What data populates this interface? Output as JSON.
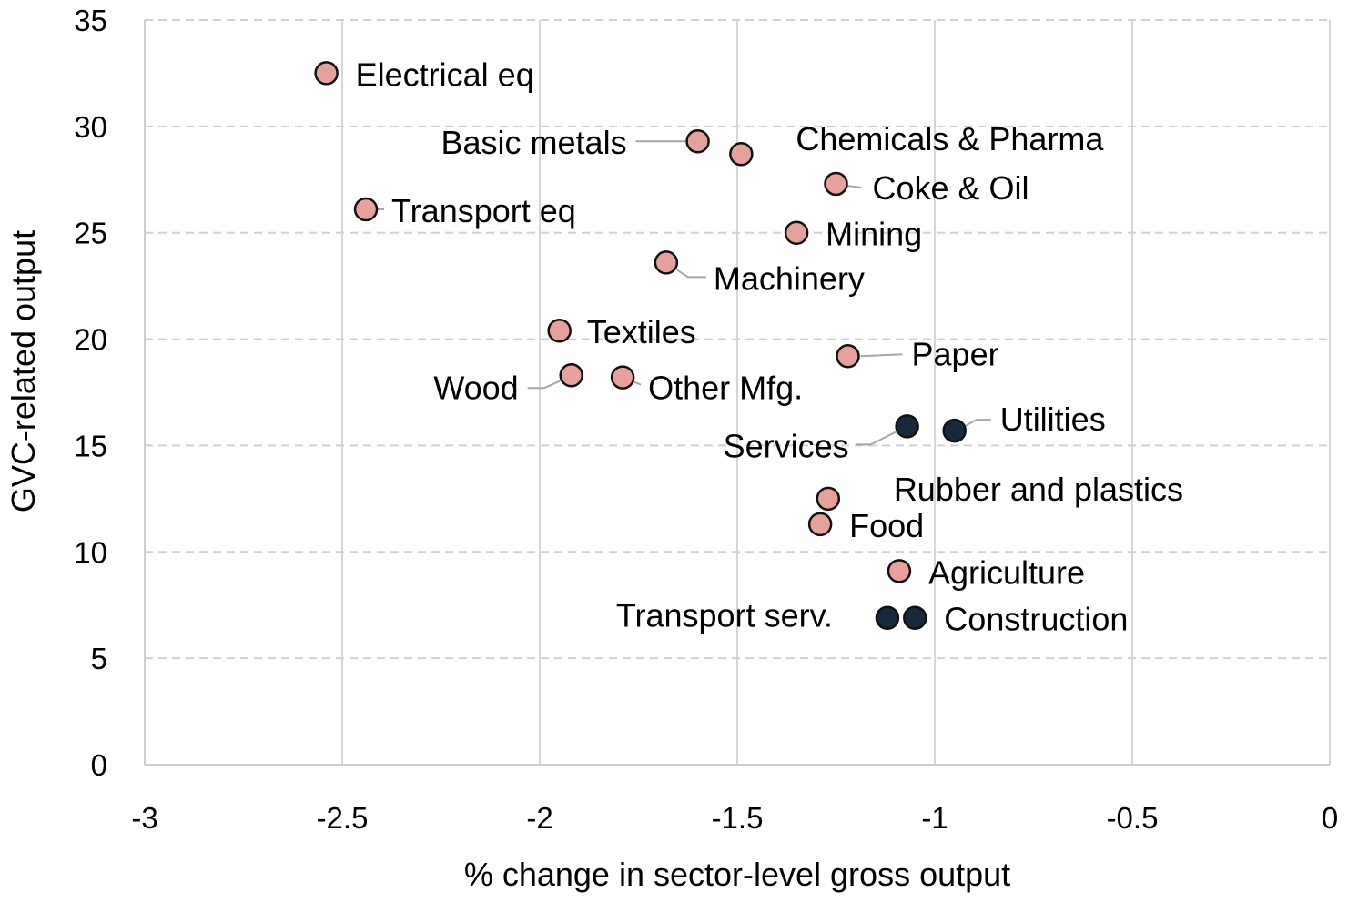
{
  "chart_data": {
    "type": "scatter",
    "xlabel": "% change in sector-level gross output",
    "ylabel": "GVC-related output",
    "xlim": [
      -3,
      0
    ],
    "ylim": [
      0,
      35
    ],
    "x_ticks": [
      "-3",
      "-2.5",
      "-2",
      "-1.5",
      "-1",
      "-0.5",
      "0"
    ],
    "y_ticks": [
      "0",
      "5",
      "10",
      "15",
      "20",
      "25",
      "30",
      "35"
    ],
    "grid": "horizontal dashed, vertical solid",
    "colors": {
      "manufacturing": "#e6a19c",
      "other": "#162a3c"
    },
    "points": [
      {
        "label": "Electrical eq",
        "x": -2.54,
        "y": 32.5,
        "group": "manufacturing"
      },
      {
        "label": "Basic metals",
        "x": -1.6,
        "y": 29.3,
        "group": "manufacturing"
      },
      {
        "label": "Chemicals & Pharma",
        "x": -1.49,
        "y": 28.7,
        "group": "manufacturing"
      },
      {
        "label": "Coke & Oil",
        "x": -1.25,
        "y": 27.3,
        "group": "manufacturing"
      },
      {
        "label": "Transport eq",
        "x": -2.44,
        "y": 26.1,
        "group": "manufacturing"
      },
      {
        "label": "Mining",
        "x": -1.35,
        "y": 25.0,
        "group": "manufacturing"
      },
      {
        "label": "Machinery",
        "x": -1.68,
        "y": 23.6,
        "group": "manufacturing"
      },
      {
        "label": "Textiles",
        "x": -1.95,
        "y": 20.4,
        "group": "manufacturing"
      },
      {
        "label": "Paper",
        "x": -1.22,
        "y": 19.2,
        "group": "manufacturing"
      },
      {
        "label": "Wood",
        "x": -1.92,
        "y": 18.3,
        "group": "manufacturing"
      },
      {
        "label": "Other Mfg.",
        "x": -1.79,
        "y": 18.2,
        "group": "manufacturing"
      },
      {
        "label": "Services",
        "x": -1.07,
        "y": 15.9,
        "group": "other"
      },
      {
        "label": "Utilities",
        "x": -0.95,
        "y": 15.7,
        "group": "other"
      },
      {
        "label": "Rubber and plastics",
        "x": -1.27,
        "y": 12.5,
        "group": "manufacturing"
      },
      {
        "label": "Food",
        "x": -1.29,
        "y": 11.3,
        "group": "manufacturing"
      },
      {
        "label": "Agriculture",
        "x": -1.09,
        "y": 9.1,
        "group": "manufacturing"
      },
      {
        "label": "Transport serv.",
        "x": -1.12,
        "y": 6.9,
        "group": "other"
      },
      {
        "label": "Construction",
        "x": -1.05,
        "y": 6.9,
        "group": "other"
      }
    ]
  }
}
